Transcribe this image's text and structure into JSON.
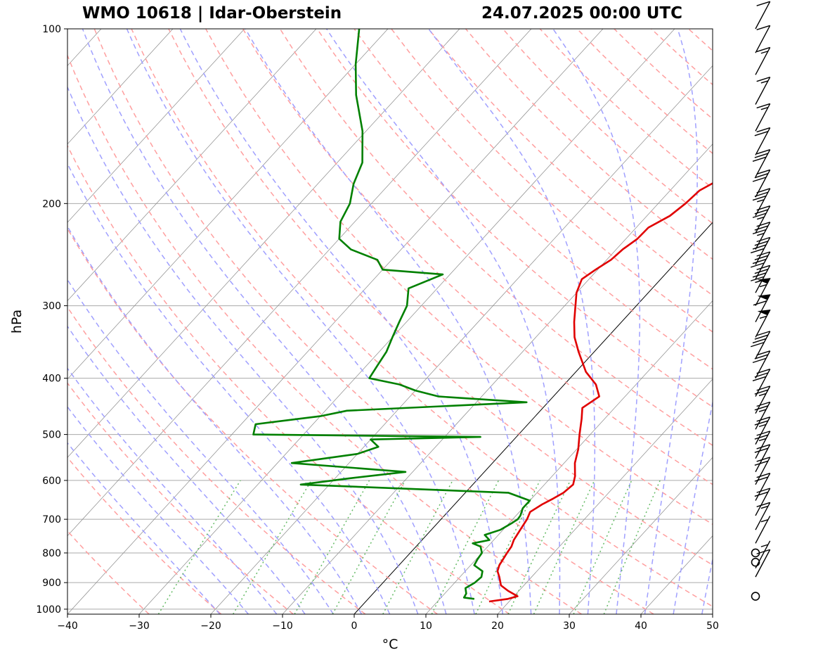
{
  "title_left": "WMO 10618 | Idar-Oberstein",
  "title_right": "24.07.2025 00:00 UTC",
  "chart_data": {
    "type": "skew-t",
    "xlabel": "°C",
    "ylabel": "hPa",
    "xlim": [
      -40,
      50
    ],
    "ylim": [
      1020,
      100
    ],
    "y_scale": "log",
    "xticks": [
      -40,
      -30,
      -20,
      -10,
      0,
      10,
      20,
      30,
      40,
      50
    ],
    "yticks": [
      100,
      200,
      300,
      400,
      500,
      600,
      700,
      800,
      900,
      1000
    ],
    "grid": true,
    "background_lines": [
      "isotherms",
      "dry adiabats",
      "moist adiabats",
      "mixing ratio lines",
      "0°C isotherm"
    ],
    "colors": {
      "temperature": "#e00000",
      "dewpoint": "#008000",
      "dry_adiabat": "#ff9f9f",
      "moist_adiabat": "#a0a0ff",
      "mixing_ratio": "#66bb66",
      "grid": "#aaaaaa"
    },
    "series": [
      {
        "role": "temperature",
        "points": [
          [
            970,
            17.2
          ],
          [
            960,
            19.5
          ],
          [
            950,
            20.5
          ],
          [
            930,
            18.5
          ],
          [
            910,
            16.8
          ],
          [
            880,
            15.5
          ],
          [
            860,
            14.5
          ],
          [
            840,
            14.0
          ],
          [
            800,
            13.5
          ],
          [
            780,
            13.3
          ],
          [
            760,
            12.8
          ],
          [
            730,
            12.4
          ],
          [
            700,
            12.0
          ],
          [
            680,
            11.5
          ],
          [
            660,
            12.2
          ],
          [
            645,
            13.0
          ],
          [
            630,
            13.7
          ],
          [
            610,
            14.0
          ],
          [
            590,
            13.2
          ],
          [
            560,
            11.5
          ],
          [
            530,
            10.2
          ],
          [
            500,
            8.5
          ],
          [
            470,
            6.8
          ],
          [
            450,
            5.5
          ],
          [
            430,
            6.4
          ],
          [
            410,
            4.4
          ],
          [
            390,
            1.4
          ],
          [
            360,
            -2.2
          ],
          [
            340,
            -4.6
          ],
          [
            320,
            -6.6
          ],
          [
            300,
            -8.5
          ],
          [
            285,
            -10.0
          ],
          [
            270,
            -11.0
          ],
          [
            260,
            -10.3
          ],
          [
            250,
            -9.4
          ],
          [
            240,
            -9.1
          ],
          [
            230,
            -8.4
          ],
          [
            220,
            -8.3
          ],
          [
            210,
            -6.8
          ],
          [
            200,
            -6.2
          ],
          [
            190,
            -5.9
          ],
          [
            180,
            -4.2
          ],
          [
            170,
            -3.6
          ],
          [
            160,
            -1.9
          ],
          [
            150,
            -1.8
          ],
          [
            140,
            -2.8
          ],
          [
            130,
            -3.0
          ],
          [
            120,
            -2.5
          ],
          [
            110,
            -2.2
          ],
          [
            100,
            -1.6
          ]
        ]
      },
      {
        "role": "dewpoint",
        "points": [
          [
            960,
            14.8
          ],
          [
            955,
            13.2
          ],
          [
            940,
            13.0
          ],
          [
            920,
            12.2
          ],
          [
            900,
            12.8
          ],
          [
            880,
            13.0
          ],
          [
            860,
            12.4
          ],
          [
            840,
            10.5
          ],
          [
            820,
            10.2
          ],
          [
            800,
            10.0
          ],
          [
            780,
            9.0
          ],
          [
            770,
            7.5
          ],
          [
            760,
            9.4
          ],
          [
            745,
            8.1
          ],
          [
            730,
            9.6
          ],
          [
            710,
            10.4
          ],
          [
            700,
            10.7
          ],
          [
            690,
            10.6
          ],
          [
            670,
            10.0
          ],
          [
            650,
            10.0
          ],
          [
            630,
            6.0
          ],
          [
            610,
            -24.0
          ],
          [
            595,
            -18.0
          ],
          [
            580,
            -11.0
          ],
          [
            560,
            -28.0
          ],
          [
            540,
            -20.0
          ],
          [
            525,
            -18.0
          ],
          [
            510,
            -20.0
          ],
          [
            505,
            -5.0
          ],
          [
            500,
            -37.0
          ],
          [
            480,
            -38.0
          ],
          [
            465,
            -30.0
          ],
          [
            455,
            -27.0
          ],
          [
            440,
            -3.0
          ],
          [
            430,
            -16.0
          ],
          [
            420,
            -20.0
          ],
          [
            410,
            -23.0
          ],
          [
            400,
            -28.0
          ],
          [
            380,
            -28.5
          ],
          [
            360,
            -29.0
          ],
          [
            340,
            -30.0
          ],
          [
            320,
            -31.0
          ],
          [
            300,
            -32.0
          ],
          [
            280,
            -34.0
          ],
          [
            265,
            -31.0
          ],
          [
            260,
            -40.0
          ],
          [
            250,
            -42.0
          ],
          [
            240,
            -47.0
          ],
          [
            230,
            -50.0
          ],
          [
            215,
            -52.0
          ],
          [
            200,
            -53.0
          ],
          [
            185,
            -55.0
          ],
          [
            170,
            -56.5
          ],
          [
            150,
            -60.5
          ],
          [
            130,
            -66.0
          ],
          [
            115,
            -70.0
          ],
          [
            100,
            -74.0
          ]
        ]
      }
    ]
  },
  "wind_barbs": [
    {
      "p": 950,
      "kt": 0
    },
    {
      "p": 880,
      "kt": 10
    },
    {
      "p": 850,
      "kt": 5
    },
    {
      "p": 830,
      "kt": 0
    },
    {
      "p": 800,
      "kt": 0
    },
    {
      "p": 770,
      "kt": 5
    },
    {
      "p": 730,
      "kt": 15
    },
    {
      "p": 690,
      "kt": 20
    },
    {
      "p": 650,
      "kt": 20
    },
    {
      "p": 610,
      "kt": 20
    },
    {
      "p": 580,
      "kt": 20
    },
    {
      "p": 550,
      "kt": 25
    },
    {
      "p": 520,
      "kt": 25
    },
    {
      "p": 490,
      "kt": 25
    },
    {
      "p": 460,
      "kt": 25
    },
    {
      "p": 430,
      "kt": 30
    },
    {
      "p": 400,
      "kt": 30
    },
    {
      "p": 370,
      "kt": 40
    },
    {
      "p": 340,
      "kt": 55
    },
    {
      "p": 320,
      "kt": 60
    },
    {
      "p": 300,
      "kt": 55
    },
    {
      "p": 285,
      "kt": 45
    },
    {
      "p": 270,
      "kt": 40
    },
    {
      "p": 255,
      "kt": 40
    },
    {
      "p": 240,
      "kt": 35
    },
    {
      "p": 225,
      "kt": 35
    },
    {
      "p": 210,
      "kt": 35
    },
    {
      "p": 195,
      "kt": 30
    },
    {
      "p": 180,
      "kt": 30
    },
    {
      "p": 165,
      "kt": 20
    },
    {
      "p": 150,
      "kt": 15
    },
    {
      "p": 135,
      "kt": 15
    },
    {
      "p": 120,
      "kt": 15
    },
    {
      "p": 110,
      "kt": 10
    },
    {
      "p": 100,
      "kt": 10
    }
  ]
}
